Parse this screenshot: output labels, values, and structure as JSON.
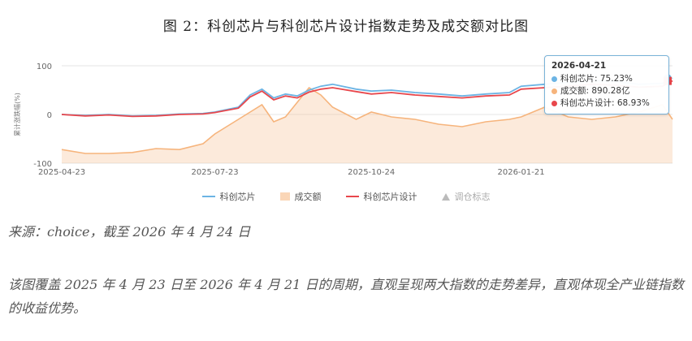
{
  "figure_title": "图 2：科创芯片与科创芯片设计指数走势及成交额对比图",
  "source": "来源：choice，截至 2026 年 4 月 24 日",
  "caption": "该图覆盖 2025 年 4 月 23 日至 2026 年 4 月 21 日的周期，直观呈现两大指数的走势差异，直观体现全产业链指数的收益优势。",
  "tooltip": {
    "date": "2026-04-21",
    "rows": [
      {
        "label": "科创芯片: 75.23%",
        "color": "#6cb4e4"
      },
      {
        "label": "成交额: 890.28亿",
        "color": "#f6b47c"
      },
      {
        "label": "科创芯片设计: 68.93%",
        "color": "#e8474c"
      }
    ]
  },
  "legend": [
    {
      "label": "科创芯片",
      "kind": "line",
      "color": "#6cb4e4"
    },
    {
      "label": "成交额",
      "kind": "area",
      "color": "#f6b47c"
    },
    {
      "label": "科创芯片设计",
      "kind": "line",
      "color": "#e8474c"
    },
    {
      "label": "调仓标志",
      "kind": "marker",
      "color": "#bbbbbb"
    }
  ],
  "chart_data": {
    "type": "line",
    "title": "",
    "xlabel": "",
    "ylabel": "累计涨跌幅(%)",
    "ylim": [
      -100,
      100
    ],
    "yticks": [
      "100",
      "0",
      "-100"
    ],
    "xtick_labels": [
      "2025-04-23",
      "2025-07-23",
      "2025-10-24",
      "2026-01-21"
    ],
    "x": [
      "2025-04-23",
      "2025-05-07",
      "2025-05-21",
      "2025-06-04",
      "2025-06-18",
      "2025-07-02",
      "2025-07-16",
      "2025-07-23",
      "2025-08-06",
      "2025-08-13",
      "2025-08-20",
      "2025-08-27",
      "2025-09-03",
      "2025-09-10",
      "2025-09-17",
      "2025-09-24",
      "2025-10-01",
      "2025-10-15",
      "2025-10-24",
      "2025-11-05",
      "2025-11-19",
      "2025-12-03",
      "2025-12-17",
      "2025-12-31",
      "2026-01-14",
      "2026-01-21",
      "2026-02-04",
      "2026-02-18",
      "2026-03-04",
      "2026-03-18",
      "2026-04-01",
      "2026-04-15",
      "2026-04-21"
    ],
    "series": [
      {
        "name": "科创芯片",
        "values": [
          0,
          -2,
          0,
          -3,
          -2,
          1,
          2,
          5,
          15,
          40,
          52,
          34,
          42,
          38,
          50,
          58,
          62,
          52,
          48,
          50,
          45,
          42,
          38,
          42,
          45,
          58,
          62,
          66,
          70,
          68,
          62,
          64,
          75.23
        ]
      },
      {
        "name": "科创芯片设计",
        "values": [
          0,
          -3,
          -1,
          -4,
          -3,
          0,
          1,
          4,
          13,
          36,
          48,
          30,
          38,
          34,
          46,
          52,
          55,
          47,
          42,
          45,
          40,
          37,
          34,
          38,
          40,
          52,
          55,
          58,
          62,
          60,
          56,
          58,
          68.93
        ]
      },
      {
        "name": "成交额",
        "values": [
          -72,
          -80,
          -80,
          -78,
          -70,
          -72,
          -60,
          -40,
          -10,
          5,
          20,
          -15,
          -5,
          25,
          55,
          40,
          15,
          -10,
          5,
          -5,
          -10,
          -20,
          -25,
          -15,
          -10,
          -5,
          15,
          -5,
          -10,
          -5,
          5,
          20,
          -10
        ]
      }
    ]
  }
}
